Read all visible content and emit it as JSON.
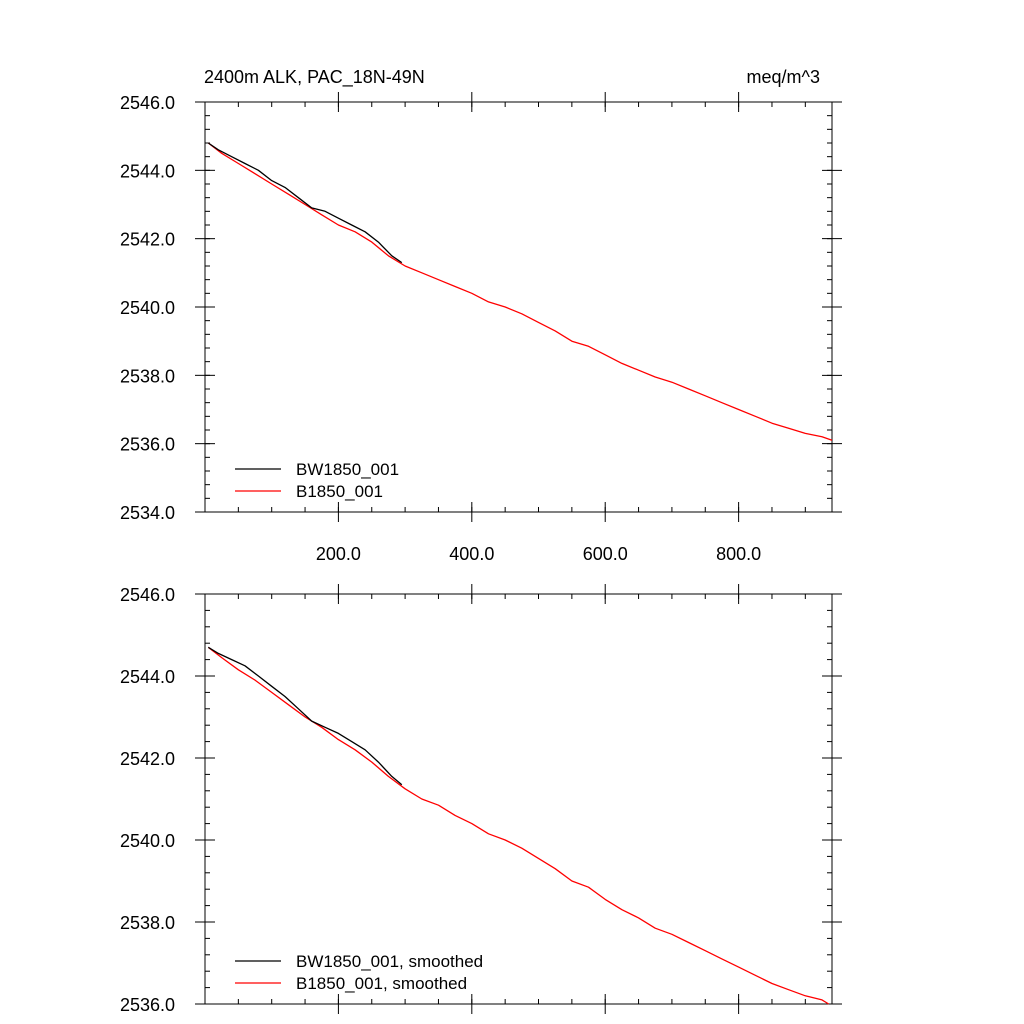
{
  "chart_data": [
    {
      "type": "line",
      "title_left": "2400m ALK, PAC_18N-49N",
      "title_right": "meq/m^3",
      "xlabel": "",
      "ylabel": "",
      "xlim": [
        0,
        940
      ],
      "ylim": [
        2534,
        2546
      ],
      "x_ticks": [
        200,
        400,
        600,
        800
      ],
      "x_tick_labels": [
        "200.0",
        "400.0",
        "600.0",
        "800.0"
      ],
      "y_ticks": [
        2534,
        2536,
        2538,
        2540,
        2542,
        2544,
        2546
      ],
      "y_tick_labels": [
        "2534.0",
        "2536.0",
        "2538.0",
        "2540.0",
        "2542.0",
        "2544.0",
        "2546.0"
      ],
      "grid": false,
      "legend_position": "bottom-left",
      "series": [
        {
          "name": "BW1850_001",
          "color": "#000000",
          "x": [
            5,
            20,
            40,
            60,
            80,
            100,
            120,
            140,
            160,
            180,
            200,
            220,
            240,
            260,
            280,
            295
          ],
          "y": [
            2544.8,
            2544.6,
            2544.4,
            2544.2,
            2544.0,
            2543.7,
            2543.5,
            2543.2,
            2542.9,
            2542.8,
            2542.6,
            2542.4,
            2542.2,
            2541.9,
            2541.5,
            2541.3
          ]
        },
        {
          "name": "B1850_001",
          "color": "#ff0000",
          "x": [
            5,
            25,
            50,
            75,
            100,
            125,
            150,
            175,
            200,
            225,
            250,
            275,
            300,
            325,
            350,
            375,
            400,
            425,
            450,
            475,
            500,
            525,
            550,
            575,
            600,
            625,
            650,
            675,
            700,
            725,
            750,
            775,
            800,
            825,
            850,
            875,
            900,
            925,
            940
          ],
          "y": [
            2544.8,
            2544.5,
            2544.2,
            2543.9,
            2543.6,
            2543.3,
            2543.0,
            2542.7,
            2542.4,
            2542.2,
            2541.9,
            2541.5,
            2541.2,
            2541.0,
            2540.8,
            2540.6,
            2540.4,
            2540.15,
            2540.0,
            2539.8,
            2539.55,
            2539.3,
            2539.0,
            2538.85,
            2538.6,
            2538.35,
            2538.15,
            2537.95,
            2537.8,
            2537.6,
            2537.4,
            2537.2,
            2537.0,
            2536.8,
            2536.6,
            2536.45,
            2536.3,
            2536.2,
            2536.1
          ]
        }
      ]
    },
    {
      "type": "line",
      "xlabel": "",
      "ylabel": "",
      "xlim": [
        0,
        940
      ],
      "ylim": [
        2536,
        2546
      ],
      "x_ticks": [
        200,
        400,
        600,
        800
      ],
      "y_ticks": [
        2536,
        2538,
        2540,
        2542,
        2544,
        2546
      ],
      "y_tick_labels": [
        "2536.0",
        "2538.0",
        "2540.0",
        "2542.0",
        "2544.0",
        "2546.0"
      ],
      "grid": false,
      "legend_position": "bottom-left",
      "series": [
        {
          "name": "BW1850_001, smoothed",
          "color": "#000000",
          "x": [
            5,
            20,
            40,
            60,
            80,
            100,
            120,
            140,
            160,
            180,
            200,
            220,
            240,
            260,
            280,
            295
          ],
          "y": [
            2544.7,
            2544.55,
            2544.4,
            2544.25,
            2544.0,
            2543.75,
            2543.5,
            2543.2,
            2542.9,
            2542.75,
            2542.6,
            2542.4,
            2542.2,
            2541.9,
            2541.55,
            2541.35
          ]
        },
        {
          "name": "B1850_001, smoothed",
          "color": "#ff0000",
          "x": [
            5,
            25,
            50,
            75,
            100,
            125,
            150,
            175,
            200,
            225,
            250,
            275,
            300,
            325,
            350,
            375,
            400,
            425,
            450,
            475,
            500,
            525,
            550,
            575,
            600,
            625,
            650,
            675,
            700,
            725,
            750,
            775,
            800,
            825,
            850,
            875,
            900,
            925,
            935
          ],
          "y": [
            2544.7,
            2544.45,
            2544.15,
            2543.9,
            2543.6,
            2543.3,
            2543.0,
            2542.75,
            2542.45,
            2542.2,
            2541.9,
            2541.55,
            2541.25,
            2541.0,
            2540.85,
            2540.6,
            2540.4,
            2540.15,
            2540.0,
            2539.8,
            2539.55,
            2539.3,
            2539.0,
            2538.85,
            2538.55,
            2538.3,
            2538.1,
            2537.85,
            2537.7,
            2537.5,
            2537.3,
            2537.1,
            2536.9,
            2536.7,
            2536.5,
            2536.35,
            2536.2,
            2536.1,
            2536.0
          ]
        }
      ]
    }
  ]
}
